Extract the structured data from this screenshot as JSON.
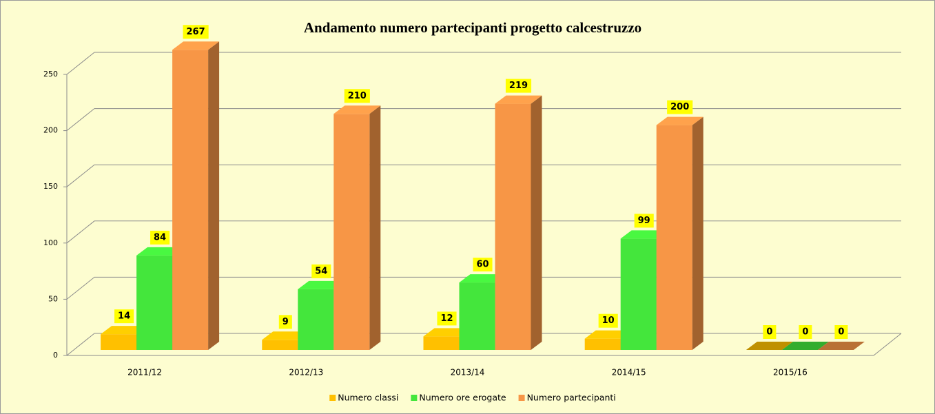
{
  "chart_data": {
    "type": "bar3d",
    "title": "Andamento numero partecipanti progetto calcestruzzo",
    "categories": [
      "2011/12",
      "2012/13",
      "2013/14",
      "2014/15",
      "2015/16"
    ],
    "series": [
      {
        "name": "Numero classi",
        "color": "#ffc000",
        "values": [
          14,
          9,
          12,
          10,
          0
        ]
      },
      {
        "name": "Numero ore erogate",
        "color": "#44e63c",
        "values": [
          84,
          54,
          60,
          99,
          0
        ]
      },
      {
        "name": "Numero partecipanti",
        "color": "#f79646",
        "values": [
          267,
          210,
          219,
          200,
          0
        ]
      }
    ],
    "ylim": [
      0,
      250
    ],
    "yticks": [
      0,
      50,
      100,
      150,
      200,
      250
    ],
    "grid": true,
    "legend": "bottom"
  }
}
